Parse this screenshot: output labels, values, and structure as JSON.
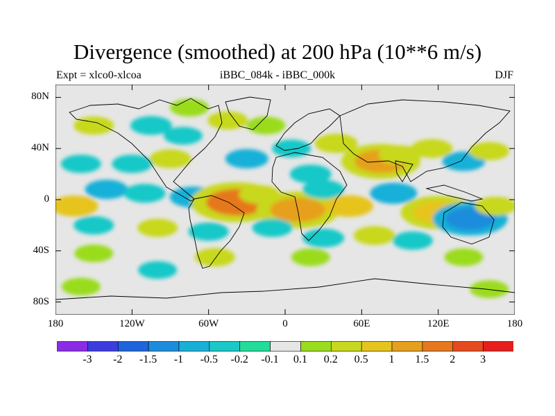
{
  "title": "Divergence (smoothed) at 200 hPa (10**6 m/s)",
  "subtitle_left": "Expt = xlco0-xlcoa",
  "subtitle_center": "iBBC_084k - iBBC_000k",
  "subtitle_right": "DJF",
  "lat_labels": [
    "80N",
    "40N",
    "0",
    "40S",
    "80S"
  ],
  "lon_labels": [
    "180",
    "120W",
    "60W",
    "0",
    "60E",
    "120E",
    "180"
  ],
  "colorbar": {
    "colors": [
      "#8b2be6",
      "#3c3ce0",
      "#1e64dc",
      "#1e8cdc",
      "#19b0d8",
      "#19c8c8",
      "#22dc9a",
      "#e6e6e6",
      "#9adc1e",
      "#c8d81e",
      "#e6c41e",
      "#e6a01e",
      "#e6781e",
      "#e64a1e",
      "#e61e1e"
    ],
    "labels": [
      "-3",
      "-2",
      "-1.5",
      "-1",
      "-0.5",
      "-0.2",
      "-0.1",
      "0.1",
      "0.2",
      "0.5",
      "1",
      "1.5",
      "2",
      "3"
    ]
  },
  "field_blobs": [
    {
      "lon": -150,
      "lat": 58,
      "value": 0.3
    },
    {
      "lon": -105,
      "lat": 58,
      "value": -0.4
    },
    {
      "lon": -75,
      "lat": 72,
      "value": 0.2
    },
    {
      "lon": -80,
      "lat": 50,
      "value": -0.2
    },
    {
      "lon": -45,
      "lat": 62,
      "value": 0.3
    },
    {
      "lon": -15,
      "lat": 58,
      "value": 0.2
    },
    {
      "lon": -30,
      "lat": 32,
      "value": -0.5
    },
    {
      "lon": -90,
      "lat": 32,
      "value": 0.4
    },
    {
      "lon": -120,
      "lat": 28,
      "value": -0.3
    },
    {
      "lon": -160,
      "lat": 28,
      "value": -0.3
    },
    {
      "lon": 40,
      "lat": 44,
      "value": 0.5
    },
    {
      "lon": 75,
      "lat": 30,
      "value": 1.2
    },
    {
      "lon": 90,
      "lat": 35,
      "value": 0.5
    },
    {
      "lon": 115,
      "lat": 40,
      "value": 0.4
    },
    {
      "lon": 140,
      "lat": 30,
      "value": -0.5
    },
    {
      "lon": 160,
      "lat": 38,
      "value": 0.3
    },
    {
      "lon": 20,
      "lat": 20,
      "value": -0.4
    },
    {
      "lon": 5,
      "lat": 40,
      "value": -0.2
    },
    {
      "lon": -140,
      "lat": 8,
      "value": -0.5
    },
    {
      "lon": -110,
      "lat": 5,
      "value": -0.4
    },
    {
      "lon": -72,
      "lat": 2,
      "value": -0.8
    },
    {
      "lon": -38,
      "lat": -2,
      "value": 1.8
    },
    {
      "lon": -20,
      "lat": 4,
      "value": 0.4
    },
    {
      "lon": 10,
      "lat": -8,
      "value": 1.4
    },
    {
      "lon": 30,
      "lat": 8,
      "value": -0.4
    },
    {
      "lon": 50,
      "lat": -5,
      "value": 0.9
    },
    {
      "lon": 85,
      "lat": 5,
      "value": -0.8
    },
    {
      "lon": 120,
      "lat": -10,
      "value": 1.0
    },
    {
      "lon": 145,
      "lat": -15,
      "value": -1.0
    },
    {
      "lon": 165,
      "lat": -5,
      "value": 0.4
    },
    {
      "lon": -165,
      "lat": -5,
      "value": 0.8
    },
    {
      "lon": -150,
      "lat": -20,
      "value": -0.3
    },
    {
      "lon": -100,
      "lat": -22,
      "value": 0.3
    },
    {
      "lon": -60,
      "lat": -25,
      "value": -0.3
    },
    {
      "lon": -10,
      "lat": -22,
      "value": -0.3
    },
    {
      "lon": 30,
      "lat": -30,
      "value": -0.4
    },
    {
      "lon": 70,
      "lat": -28,
      "value": 0.4
    },
    {
      "lon": 100,
      "lat": -32,
      "value": -0.3
    },
    {
      "lon": -150,
      "lat": -42,
      "value": 0.2
    },
    {
      "lon": -55,
      "lat": -45,
      "value": 0.3
    },
    {
      "lon": 20,
      "lat": -45,
      "value": 0.2
    },
    {
      "lon": 140,
      "lat": -45,
      "value": 0.2
    },
    {
      "lon": -100,
      "lat": -55,
      "value": -0.2
    },
    {
      "lon": -160,
      "lat": -68,
      "value": 0.2
    },
    {
      "lon": 160,
      "lat": -70,
      "value": 0.2
    }
  ]
}
